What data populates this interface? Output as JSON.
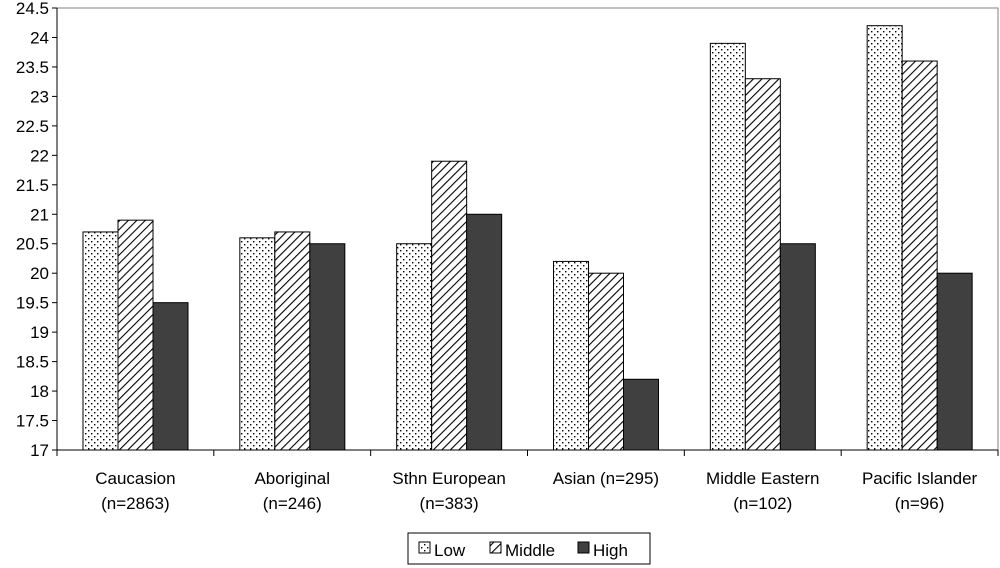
{
  "chart_data": {
    "type": "bar",
    "categories": [
      [
        "Caucasion",
        "(n=2863)"
      ],
      [
        "Aboriginal",
        "(n=246)"
      ],
      [
        "Sthn European",
        "(n=383)"
      ],
      [
        "Asian (n=295)"
      ],
      [
        "Middle Eastern",
        "(n=102)"
      ],
      [
        "Pacific Islander",
        "(n=96)"
      ]
    ],
    "series": [
      {
        "name": "Low",
        "values": [
          20.7,
          20.6,
          20.5,
          20.2,
          23.9,
          24.2
        ],
        "pattern": "dots"
      },
      {
        "name": "Middle",
        "values": [
          20.9,
          20.7,
          21.9,
          20.0,
          23.3,
          23.6
        ],
        "pattern": "hatch"
      },
      {
        "name": "High",
        "values": [
          19.5,
          20.5,
          21.0,
          18.2,
          20.5,
          20.0
        ],
        "pattern": "solid",
        "color": "#404040"
      }
    ],
    "ylim": [
      17,
      24.5
    ],
    "ytick_step": 0.5,
    "yticks": [
      "17",
      "17.5",
      "18",
      "18.5",
      "19",
      "19.5",
      "20",
      "20.5",
      "21",
      "21.5",
      "22",
      "22.5",
      "23",
      "23.5",
      "24",
      "24.5"
    ],
    "grid": false,
    "legend_position": "bottom",
    "title": "",
    "xlabel": "",
    "ylabel": ""
  }
}
